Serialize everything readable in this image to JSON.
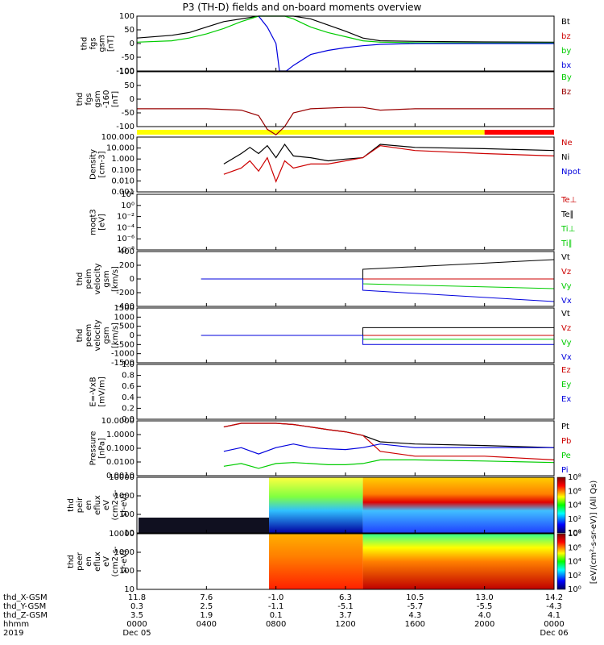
{
  "title": "P3 (TH-D) fields and on-board moments overview",
  "panels": [
    {
      "id": "fgs",
      "ylabel": [
        "thd",
        "fgs",
        "gsm",
        "[nT]"
      ],
      "yticks": [
        "100",
        "50",
        "0",
        "-50",
        "-100"
      ],
      "legend": [
        {
          "text": "Bt",
          "color": "#000000"
        },
        {
          "text": "bz",
          "color": "#cc0000"
        },
        {
          "text": "by",
          "color": "#00cc00"
        },
        {
          "text": "bx",
          "color": "#0000dd"
        }
      ]
    },
    {
      "id": "fgs_dsl",
      "ylabel": [
        "thd",
        "fgs",
        "gsm",
        "-160",
        "[nT]"
      ],
      "yticks": [
        "100",
        "50",
        "0",
        "-50",
        "-100"
      ],
      "legend": [
        {
          "text": "By",
          "color": "#00cc00"
        },
        {
          "text": "Bz",
          "color": "#990000"
        }
      ]
    },
    {
      "id": "density",
      "ylabel": [
        "Density",
        "[cm-3]"
      ],
      "yticks": [
        "100.000",
        "10.000",
        "1.000",
        "0.100",
        "0.010",
        "0.001"
      ],
      "legend": [
        {
          "text": "Ne",
          "color": "#cc0000"
        },
        {
          "text": "Ni",
          "color": "#000000"
        },
        {
          "text": "Npot",
          "color": "#0000dd"
        }
      ]
    },
    {
      "id": "temp",
      "ylabel": [
        "moqt3",
        "[eV]"
      ],
      "yticks": [
        "10²",
        "10⁰",
        "10⁻²",
        "10⁻⁴",
        "10⁻⁶",
        "10⁻⁸"
      ],
      "legend": [
        {
          "text": "Te⊥",
          "color": "#cc0000"
        },
        {
          "text": "Te∥",
          "color": "#000000"
        },
        {
          "text": "Ti⊥",
          "color": "#00cc00"
        },
        {
          "text": "Ti∥",
          "color": "#00cc00"
        }
      ]
    },
    {
      "id": "peim",
      "ylabel": [
        "thd",
        "peim",
        "velocity",
        "gsm",
        "[km/s]"
      ],
      "yticks": [
        "400",
        "200",
        "0",
        "-200",
        "-400"
      ],
      "legend": [
        {
          "text": "Vt",
          "color": "#000000"
        },
        {
          "text": "Vz",
          "color": "#cc0000"
        },
        {
          "text": "Vy",
          "color": "#00cc00"
        },
        {
          "text": "Vx",
          "color": "#0000dd"
        }
      ]
    },
    {
      "id": "peem",
      "ylabel": [
        "thd",
        "peem",
        "velocity",
        "gsm",
        "[km/s]"
      ],
      "yticks": [
        "1500",
        "1000",
        "500",
        "0",
        "-500",
        "-1000",
        "-1500"
      ],
      "legend": [
        {
          "text": "Vt",
          "color": "#000000"
        },
        {
          "text": "Vz",
          "color": "#cc0000"
        },
        {
          "text": "Vy",
          "color": "#00cc00"
        },
        {
          "text": "Vx",
          "color": "#0000dd"
        }
      ]
    },
    {
      "id": "efield",
      "ylabel": [
        "E=-VxB",
        "[mV/m]"
      ],
      "yticks": [
        "1.0",
        "0.8",
        "0.6",
        "0.4",
        "0.2",
        "0.0"
      ],
      "legend": [
        {
          "text": "Ez",
          "color": "#cc0000"
        },
        {
          "text": "Ey",
          "color": "#00cc00"
        },
        {
          "text": "Ex",
          "color": "#0000dd"
        }
      ]
    },
    {
      "id": "pressure",
      "ylabel": [
        "Pressure",
        "[nPa]"
      ],
      "yticks": [
        "10.0000",
        "1.0000",
        "0.1000",
        "0.0100",
        "0.0010"
      ],
      "legend": [
        {
          "text": "Pt",
          "color": "#000000"
        },
        {
          "text": "Pb",
          "color": "#cc0000"
        },
        {
          "text": "Pe",
          "color": "#00cc00"
        },
        {
          "text": "Pi",
          "color": "#0000dd"
        }
      ]
    },
    {
      "id": "peir",
      "ylabel": [
        "thd",
        "peir",
        "en",
        "eflux",
        "eV",
        "(cm2-s-",
        "sr-eV)"
      ],
      "yticks": [
        "10000",
        "1000",
        "100",
        "10"
      ],
      "legend": []
    },
    {
      "id": "peer",
      "ylabel": [
        "thd",
        "peer",
        "en",
        "eflux",
        "eV",
        "(cm2-s-",
        "sr-eV)"
      ],
      "yticks": [
        "10000",
        "1000",
        "100",
        "10"
      ],
      "legend": []
    }
  ],
  "colorbar": {
    "ticks_top": [
      "10⁸",
      "10⁶",
      "10⁴",
      "10²",
      "10⁰"
    ],
    "ticks_bottom": [
      "10⁸",
      "10⁶",
      "10⁴",
      "10²",
      "10⁰"
    ],
    "label": "[eV/(cm²-s-sr-eV)] (All Qs)"
  },
  "footer": {
    "row_labels": [
      "thd_X-GSM",
      "thd_Y-GSM",
      "thd_Z-GSM",
      "hhmm",
      "2019"
    ],
    "columns": [
      {
        "x": "11.8",
        "y": "0.3",
        "z": "3.5",
        "t": "0000",
        "d": "Dec 05"
      },
      {
        "x": "7.6",
        "y": "2.5",
        "z": "1.9",
        "t": "0400",
        "d": ""
      },
      {
        "x": "-1.0",
        "y": "-1.1",
        "z": "0.1",
        "t": "0800",
        "d": ""
      },
      {
        "x": "6.3",
        "y": "-5.1",
        "z": "3.7",
        "t": "1200",
        "d": ""
      },
      {
        "x": "10.5",
        "y": "-5.7",
        "z": "4.3",
        "t": "1600",
        "d": ""
      },
      {
        "x": "13.0",
        "y": "-5.5",
        "z": "4.0",
        "t": "2000",
        "d": ""
      },
      {
        "x": "14.2",
        "y": "-4.3",
        "z": "4.1",
        "t": "0000",
        "d": "Dec 06"
      }
    ]
  },
  "colors": {
    "mode_bar_yellow": "#ffff00",
    "mode_bar_red": "#ff0000"
  },
  "chart_data": {
    "type": "line",
    "x_hours": [
      0,
      4,
      8,
      12,
      16,
      20,
      24
    ],
    "mode_bar": [
      {
        "from": 0,
        "to": 20,
        "color": "yellow"
      },
      {
        "from": 20,
        "to": 24,
        "color": "red"
      }
    ],
    "series": [
      {
        "name": "Bt",
        "panel": "fgs",
        "x": [
          0,
          2,
          3,
          4,
          5,
          7,
          8,
          9,
          10,
          12,
          13,
          14,
          16,
          20,
          24
        ],
        "y": [
          20,
          30,
          40,
          60,
          80,
          100,
          100,
          100,
          90,
          45,
          20,
          10,
          8,
          6,
          5
        ]
      },
      {
        "name": "by",
        "panel": "fgs",
        "x": [
          0,
          2,
          3,
          4,
          5,
          6,
          7,
          7.5,
          8.5,
          9,
          10,
          11,
          12,
          13,
          14,
          16,
          20,
          24
        ],
        "y": [
          5,
          10,
          20,
          35,
          55,
          80,
          100,
          100,
          100,
          90,
          60,
          40,
          25,
          10,
          5,
          3,
          2,
          2
        ]
      },
      {
        "name": "bx",
        "panel": "fgs",
        "x": [
          7,
          7.5,
          8,
          8.2,
          8.6,
          9,
          10,
          11,
          12,
          13,
          14,
          16,
          20,
          24
        ],
        "y": [
          100,
          60,
          0,
          -100,
          -100,
          -80,
          -40,
          -25,
          -15,
          -8,
          -3,
          0,
          0,
          0
        ]
      },
      {
        "name": "Bz",
        "panel": "fgs_dsl",
        "x": [
          0,
          2,
          4,
          6,
          7,
          7.5,
          8,
          8.5,
          9,
          10,
          12,
          13,
          14,
          16,
          20,
          24
        ],
        "y": [
          -35,
          -35,
          -35,
          -40,
          -60,
          -110,
          -130,
          -100,
          -50,
          -35,
          -30,
          -30,
          -40,
          -35,
          -35,
          -35
        ]
      },
      {
        "name": "Ni",
        "panel": "density",
        "x": [
          5,
          6,
          6.5,
          7,
          7.5,
          8,
          8.5,
          9,
          10,
          11,
          12,
          13,
          14,
          16,
          20,
          24
        ],
        "y": [
          0.5,
          5,
          20,
          5,
          30,
          2,
          40,
          3,
          2,
          1,
          1.5,
          2,
          40,
          20,
          15,
          10
        ]
      },
      {
        "name": "Ne",
        "panel": "density",
        "x": [
          5,
          6,
          6.5,
          7,
          7.5,
          8,
          8.5,
          9,
          10,
          11,
          12,
          13,
          14,
          16,
          20,
          24
        ],
        "y": [
          0.05,
          0.2,
          1,
          0.1,
          2,
          0.01,
          1,
          0.2,
          0.5,
          0.5,
          1,
          2,
          30,
          10,
          5,
          3
        ]
      },
      {
        "name": "Pt",
        "panel": "pressure",
        "x": [
          5,
          6,
          7,
          8,
          9,
          10,
          11,
          12,
          13,
          14,
          16,
          20,
          24
        ],
        "y": [
          5,
          10,
          10,
          10,
          8,
          5,
          3,
          2,
          1,
          0.3,
          0.2,
          0.15,
          0.1
        ]
      },
      {
        "name": "Pb",
        "panel": "pressure",
        "x": [
          5,
          6,
          7,
          8,
          9,
          10,
          11,
          12,
          13,
          14,
          16,
          20,
          24
        ],
        "y": [
          5,
          10,
          10,
          10,
          8,
          5,
          3,
          2,
          1,
          0.05,
          0.02,
          0.02,
          0.01
        ]
      },
      {
        "name": "Pi",
        "panel": "pressure",
        "x": [
          5,
          6,
          7,
          8,
          9,
          10,
          11,
          12,
          13,
          14,
          16,
          20,
          24
        ],
        "y": [
          0.05,
          0.1,
          0.03,
          0.1,
          0.2,
          0.1,
          0.08,
          0.07,
          0.1,
          0.2,
          0.1,
          0.1,
          0.1
        ]
      },
      {
        "name": "Pe",
        "panel": "pressure",
        "x": [
          5,
          6,
          7,
          8,
          9,
          10,
          11,
          12,
          13,
          14,
          16,
          20,
          24
        ],
        "y": [
          0.003,
          0.005,
          0.002,
          0.005,
          0.006,
          0.005,
          0.004,
          0.004,
          0.005,
          0.01,
          0.01,
          0.008,
          0.006
        ]
      }
    ]
  }
}
